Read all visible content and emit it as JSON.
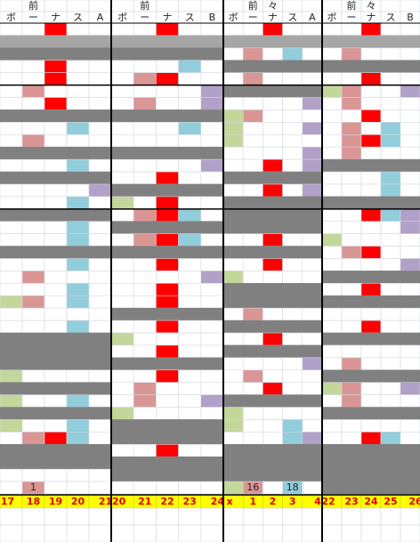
{
  "panels": [
    {
      "header_top": [
        "前"
      ],
      "header_cols": [
        "ボ",
        "ー",
        "ナ",
        "ス",
        "A"
      ],
      "cell_labels": [
        "1"
      ],
      "footer": [
        17,
        18,
        19,
        20,
        21
      ]
    },
    {
      "header_top": [
        "前"
      ],
      "header_cols": [
        "ボ",
        "ー",
        "ナ",
        "ス",
        "B"
      ],
      "cell_labels": [],
      "footer": [
        20,
        21,
        22,
        23,
        24
      ]
    },
    {
      "header_top": [
        "前",
        "々"
      ],
      "header_cols": [
        "ボ",
        "ー",
        "ナ",
        "ス",
        "A"
      ],
      "cell_labels": [
        "16",
        "18"
      ],
      "footer": [
        "x",
        1,
        2,
        3,
        4
      ]
    },
    {
      "header_top": [
        "前",
        "々"
      ],
      "header_cols": [
        "ボ",
        "ー",
        "ナ",
        "ス",
        "B"
      ],
      "cell_labels": [],
      "footer": [
        22,
        23,
        24,
        25,
        26
      ]
    }
  ]
}
